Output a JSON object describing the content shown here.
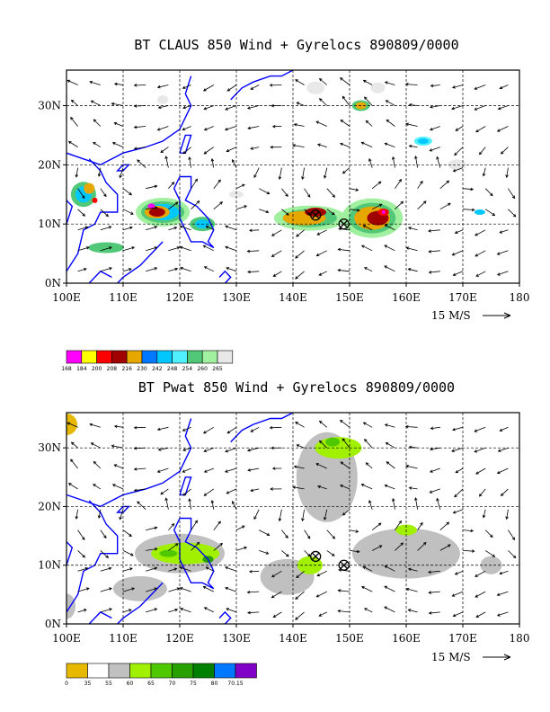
{
  "panel1": {
    "title": "BT CLAUS 850 Wind + Gyrelocs 890809/0000",
    "field": "CLAUS brightness temperature",
    "scale_label": "15 M/S",
    "colorbar": [
      {
        "label": "168",
        "color": "#ff00ff"
      },
      {
        "label": "184",
        "color": "#ffff00"
      },
      {
        "label": "200",
        "color": "#ff0000"
      },
      {
        "label": "208",
        "color": "#a00000"
      },
      {
        "label": "216",
        "color": "#e6a800"
      },
      {
        "label": "230",
        "color": "#0078ff"
      },
      {
        "label": "242",
        "color": "#00c8ff"
      },
      {
        "label": "248",
        "color": "#50f0ff"
      },
      {
        "label": "254",
        "color": "#50c878"
      },
      {
        "label": "260",
        "color": "#a0f0a0"
      },
      {
        "label": "265",
        "color": "#e8e8e8"
      }
    ]
  },
  "panel2": {
    "title": "BT Pwat 850 Wind + Gyrelocs 890809/0000",
    "field": "Precipitable water",
    "scale_label": "15 M/S",
    "colorbar": [
      {
        "label": "0",
        "color": "#e6b800"
      },
      {
        "label": "35",
        "color": "#ffffff"
      },
      {
        "label": "55",
        "color": "#c0c0c0"
      },
      {
        "label": "60",
        "color": "#a0f000"
      },
      {
        "label": "65",
        "color": "#50c800"
      },
      {
        "label": "70",
        "color": "#28a000"
      },
      {
        "label": "75",
        "color": "#008000"
      },
      {
        "label": "80",
        "color": "#0078ff"
      },
      {
        "label": "70.15",
        "color": "#8000c8"
      }
    ]
  },
  "axes": {
    "lon_labels": [
      "100E",
      "110E",
      "120E",
      "130E",
      "140E",
      "150E",
      "160E",
      "170E",
      "180"
    ],
    "lat_labels": [
      "0N",
      "10N",
      "20N",
      "30N"
    ],
    "lon_range": [
      100,
      180
    ],
    "lat_range": [
      0,
      36
    ]
  },
  "gyre_locations": [
    {
      "lon": 144.0,
      "lat": 11.5
    },
    {
      "lon": 149.0,
      "lat": 10.0
    }
  ],
  "colors": {
    "coast": "#0000ff",
    "grid": "#000000"
  }
}
